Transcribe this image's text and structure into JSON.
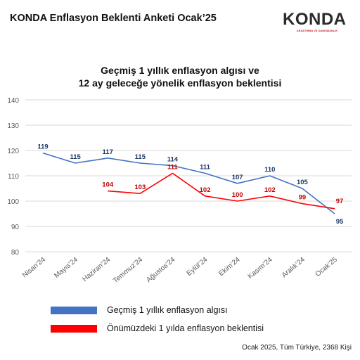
{
  "header": {
    "title": "KONDA Enflasyon Beklenti Anketi Ocak’25",
    "logo_text": "KONDA",
    "logo_subtext": "ARAŞTIRMA VE DANIŞMANLIK"
  },
  "footer": {
    "note": "Ocak 2025, Tüm Türkiye, 2368 Kişi"
  },
  "colors": {
    "series_past": "#4472c4",
    "series_future": "#ff0000",
    "grid": "#d9d9d9",
    "axis_text": "#595959"
  },
  "chart_data": {
    "type": "line",
    "title_lines": [
      "Geçmiş 1 yıllık enflasyon algısı ve",
      "12 ay geleceğe yönelik enflasyon beklentisi"
    ],
    "categories": [
      "Nisan’24",
      "Mayıs’24",
      "Haziran’24",
      "Temmuz’24",
      "Ağustos’24",
      "Eylül’24",
      "Ekim’24",
      "Kasım’24",
      "Aralık’24",
      "Ocak’25"
    ],
    "ylim": [
      80,
      140
    ],
    "yticks": [
      80,
      90,
      100,
      110,
      120,
      130,
      140
    ],
    "grid": true,
    "legend_position": "bottom-left",
    "series": [
      {
        "name": "Geçmiş 1 yıllık enflasyon algısı",
        "color": "#4472c4",
        "values": [
          119,
          115,
          117,
          115,
          114,
          111,
          107,
          110,
          105,
          95
        ]
      },
      {
        "name": "Önümüzdeki 1 yılda enflasyon beklentisi",
        "color": "#ff0000",
        "values": [
          null,
          null,
          104,
          103,
          111,
          102,
          100,
          102,
          99,
          97
        ]
      }
    ]
  }
}
